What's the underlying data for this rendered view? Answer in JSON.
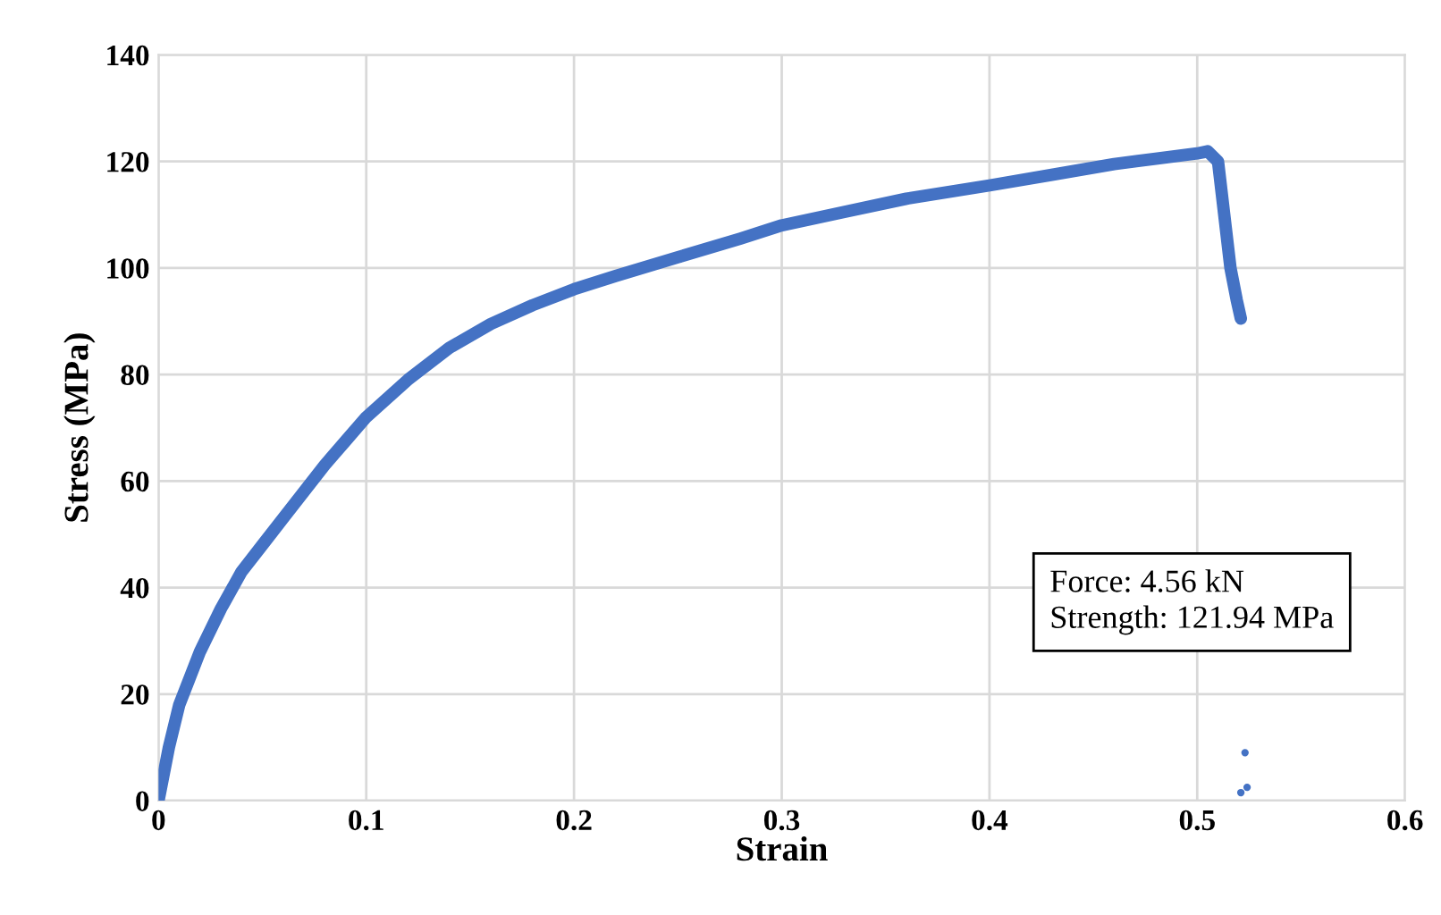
{
  "chart_data": {
    "type": "line",
    "xlabel": "Strain",
    "ylabel": "Stress (MPa)",
    "xlim": [
      0,
      0.6
    ],
    "ylim": [
      0,
      140
    ],
    "xticks": [
      0,
      0.1,
      0.2,
      0.3,
      0.4,
      0.5,
      0.6
    ],
    "yticks": [
      0,
      20,
      40,
      60,
      80,
      100,
      120,
      140
    ],
    "grid": true,
    "annotations": [
      "Force: 4.56 kN\nStrength: 121.94 MPa"
    ],
    "series": [
      {
        "color": "#4472c4",
        "x": [
          0,
          0.005,
          0.01,
          0.02,
          0.03,
          0.04,
          0.05,
          0.06,
          0.07,
          0.08,
          0.09,
          0.1,
          0.12,
          0.14,
          0.16,
          0.18,
          0.2,
          0.22,
          0.25,
          0.28,
          0.3,
          0.33,
          0.36,
          0.4,
          0.43,
          0.46,
          0.48,
          0.5,
          0.505,
          0.51,
          0.513,
          0.516,
          0.519,
          0.521
        ],
        "values": [
          0,
          10,
          18,
          28,
          36,
          43,
          48,
          53,
          58,
          63,
          67.5,
          72,
          79,
          85,
          89.5,
          93,
          96,
          98.5,
          102,
          105.5,
          108,
          110.5,
          113,
          115.5,
          117.5,
          119.5,
          120.5,
          121.5,
          121.9,
          120,
          110,
          100,
          94,
          90.5
        ]
      },
      {
        "type": "scatter",
        "color": "#4472c4",
        "x": [
          0.523,
          0.521,
          0.524
        ],
        "values": [
          9,
          1.5,
          2.5
        ]
      }
    ]
  }
}
